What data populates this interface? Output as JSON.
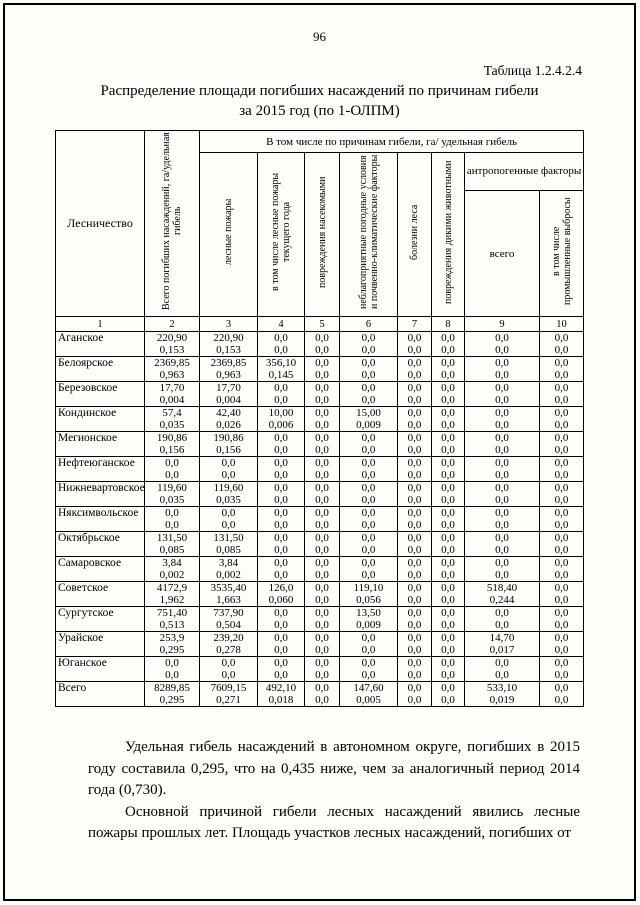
{
  "page": {
    "number": "96",
    "table_label": "Таблица 1.2.4.2.4",
    "title_line1": "Распределение площади погибших насаждений по причинам гибели",
    "title_line2": "за 2015 год (по 1-ОЛПМ)"
  },
  "table": {
    "header": {
      "col_forestry": "Лесничество",
      "col_total": "Всего погибших насаждений, га/удельная гибель",
      "causes_band": "В том числе по причинам гибели, га/ удельная гибель",
      "col_fires": "лесные пожары",
      "col_fires_current": "в том числе лесные пожары текущего года",
      "col_insects": "повреждения насекомыми",
      "col_weather": "неблагоприятные погодные условия и почвенно-климатические факторы",
      "col_disease": "болезни леса",
      "col_animals": "повреждения дикими животными",
      "anthropogenic_band": "антропогенные факторы",
      "col_anthro_total": "всего",
      "col_anthro_industrial": "в том числе промышленные выбросы",
      "numbers": [
        "1",
        "2",
        "3",
        "4",
        "5",
        "6",
        "7",
        "8",
        "9",
        "10"
      ]
    },
    "rows": [
      {
        "name": "Аганское",
        "values": [
          [
            "220,90",
            "0,153"
          ],
          [
            "220,90",
            "0,153"
          ],
          [
            "0,0",
            "0,0"
          ],
          [
            "0,0",
            "0,0"
          ],
          [
            "0,0",
            "0,0"
          ],
          [
            "0,0",
            "0,0"
          ],
          [
            "0,0",
            "0,0"
          ],
          [
            "0,0",
            "0,0"
          ],
          [
            "0,0",
            "0,0"
          ]
        ]
      },
      {
        "name": "Белоярское",
        "values": [
          [
            "2369,85",
            "0,963"
          ],
          [
            "2369,85",
            "0,963"
          ],
          [
            "356,10",
            "0,145"
          ],
          [
            "0,0",
            "0,0"
          ],
          [
            "0,0",
            "0,0"
          ],
          [
            "0,0",
            "0,0"
          ],
          [
            "0,0",
            "0,0"
          ],
          [
            "0,0",
            "0,0"
          ],
          [
            "0,0",
            "0,0"
          ]
        ]
      },
      {
        "name": "Березовское",
        "values": [
          [
            "17,70",
            "0,004"
          ],
          [
            "17,70",
            "0,004"
          ],
          [
            "0,0",
            "0,0"
          ],
          [
            "0,0",
            "0,0"
          ],
          [
            "0,0",
            "0,0"
          ],
          [
            "0,0",
            "0,0"
          ],
          [
            "0,0",
            "0,0"
          ],
          [
            "0,0",
            "0,0"
          ],
          [
            "0,0",
            "0,0"
          ]
        ]
      },
      {
        "name": "Кондинское",
        "values": [
          [
            "57,4",
            "0,035"
          ],
          [
            "42,40",
            "0,026"
          ],
          [
            "10,00",
            "0,006"
          ],
          [
            "0,0",
            "0,0"
          ],
          [
            "15,00",
            "0,009"
          ],
          [
            "0,0",
            "0,0"
          ],
          [
            "0,0",
            "0,0"
          ],
          [
            "0,0",
            "0,0"
          ],
          [
            "0,0",
            "0,0"
          ]
        ]
      },
      {
        "name": "Мегионское",
        "values": [
          [
            "190,86",
            "0,156"
          ],
          [
            "190,86",
            "0,156"
          ],
          [
            "0,0",
            "0,0"
          ],
          [
            "0,0",
            "0,0"
          ],
          [
            "0,0",
            "0,0"
          ],
          [
            "0,0",
            "0,0"
          ],
          [
            "0,0",
            "0,0"
          ],
          [
            "0,0",
            "0,0"
          ],
          [
            "0,0",
            "0,0"
          ]
        ]
      },
      {
        "name": "Нефтеюганское",
        "values": [
          [
            "0,0",
            "0,0"
          ],
          [
            "0,0",
            "0,0"
          ],
          [
            "0,0",
            "0,0"
          ],
          [
            "0,0",
            "0,0"
          ],
          [
            "0,0",
            "0,0"
          ],
          [
            "0,0",
            "0,0"
          ],
          [
            "0,0",
            "0,0"
          ],
          [
            "0,0",
            "0,0"
          ],
          [
            "0,0",
            "0,0"
          ]
        ]
      },
      {
        "name": "Нижневартовское",
        "values": [
          [
            "119,60",
            "0,035"
          ],
          [
            "119,60",
            "0,035"
          ],
          [
            "0,0",
            "0,0"
          ],
          [
            "0,0",
            "0,0"
          ],
          [
            "0,0",
            "0,0"
          ],
          [
            "0,0",
            "0,0"
          ],
          [
            "0,0",
            "0,0"
          ],
          [
            "0,0",
            "0,0"
          ],
          [
            "0,0",
            "0,0"
          ]
        ]
      },
      {
        "name": "Няксимвольское",
        "values": [
          [
            "0,0",
            "0,0"
          ],
          [
            "0,0",
            "0,0"
          ],
          [
            "0,0",
            "0,0"
          ],
          [
            "0,0",
            "0,0"
          ],
          [
            "0,0",
            "0,0"
          ],
          [
            "0,0",
            "0,0"
          ],
          [
            "0,0",
            "0,0"
          ],
          [
            "0,0",
            "0,0"
          ],
          [
            "0,0",
            "0,0"
          ]
        ]
      },
      {
        "name": "Октябрьское",
        "values": [
          [
            "131,50",
            "0,085"
          ],
          [
            "131,50",
            "0,085"
          ],
          [
            "0,0",
            "0,0"
          ],
          [
            "0,0",
            "0,0"
          ],
          [
            "0,0",
            "0,0"
          ],
          [
            "0,0",
            "0,0"
          ],
          [
            "0,0",
            "0,0"
          ],
          [
            "0,0",
            "0,0"
          ],
          [
            "0,0",
            "0,0"
          ]
        ]
      },
      {
        "name": "Самаровское",
        "values": [
          [
            "3,84",
            "0,002"
          ],
          [
            "3,84",
            "0,002"
          ],
          [
            "0,0",
            "0,0"
          ],
          [
            "0,0",
            "0,0"
          ],
          [
            "0,0",
            "0,0"
          ],
          [
            "0,0",
            "0,0"
          ],
          [
            "0,0",
            "0,0"
          ],
          [
            "0,0",
            "0,0"
          ],
          [
            "0,0",
            "0,0"
          ]
        ]
      },
      {
        "name": "Советское",
        "values": [
          [
            "4172,9",
            "1,962"
          ],
          [
            "3535,40",
            "1,663"
          ],
          [
            "126,0",
            "0,060"
          ],
          [
            "0,0",
            "0,0"
          ],
          [
            "119,10",
            "0,056"
          ],
          [
            "0,0",
            "0,0"
          ],
          [
            "0,0",
            "0,0"
          ],
          [
            "518,40",
            "0,244"
          ],
          [
            "0,0",
            "0,0"
          ]
        ]
      },
      {
        "name": "Сургутское",
        "values": [
          [
            "751,40",
            "0,513"
          ],
          [
            "737,90",
            "0,504"
          ],
          [
            "0,0",
            "0,0"
          ],
          [
            "0,0",
            "0,0"
          ],
          [
            "13,50",
            "0,009"
          ],
          [
            "0,0",
            "0,0"
          ],
          [
            "0,0",
            "0,0"
          ],
          [
            "0,0",
            "0,0"
          ],
          [
            "0,0",
            "0,0"
          ]
        ]
      },
      {
        "name": "Урайское",
        "values": [
          [
            "253,9",
            "0,295"
          ],
          [
            "239,20",
            "0,278"
          ],
          [
            "0,0",
            "0,0"
          ],
          [
            "0,0",
            "0,0"
          ],
          [
            "0,0",
            "0,0"
          ],
          [
            "0,0",
            "0,0"
          ],
          [
            "0,0",
            "0,0"
          ],
          [
            "14,70",
            "0,017"
          ],
          [
            "0,0",
            "0,0"
          ]
        ]
      },
      {
        "name": "Юганское",
        "values": [
          [
            "0,0",
            "0,0"
          ],
          [
            "0,0",
            "0,0"
          ],
          [
            "0,0",
            "0,0"
          ],
          [
            "0,0",
            "0,0"
          ],
          [
            "0,0",
            "0,0"
          ],
          [
            "0,0",
            "0,0"
          ],
          [
            "0,0",
            "0,0"
          ],
          [
            "0,0",
            "0,0"
          ],
          [
            "0,0",
            "0,0"
          ]
        ]
      }
    ],
    "total_row": {
      "name": "Всего",
      "values": [
        [
          "8289,85",
          "0,295"
        ],
        [
          "7609,15",
          "0,271"
        ],
        [
          "492,10",
          "0,018"
        ],
        [
          "0,0",
          "0,0"
        ],
        [
          "147,60",
          "0,005"
        ],
        [
          "0,0",
          "0,0"
        ],
        [
          "0,0",
          "0,0"
        ],
        [
          "533,10",
          "0,019"
        ],
        [
          "0,0",
          "0,0"
        ]
      ]
    }
  },
  "paragraphs": [
    "Удельная гибель насаждений в автономном округе, погибших в 2015 году составила 0,295, что на 0,435 ниже, чем за аналогичный период 2014 года (0,730).",
    "Основной причиной гибели лесных насаждений явились лесные пожары прошлых лет. Площадь участков лесных насаждений, погибших от"
  ]
}
